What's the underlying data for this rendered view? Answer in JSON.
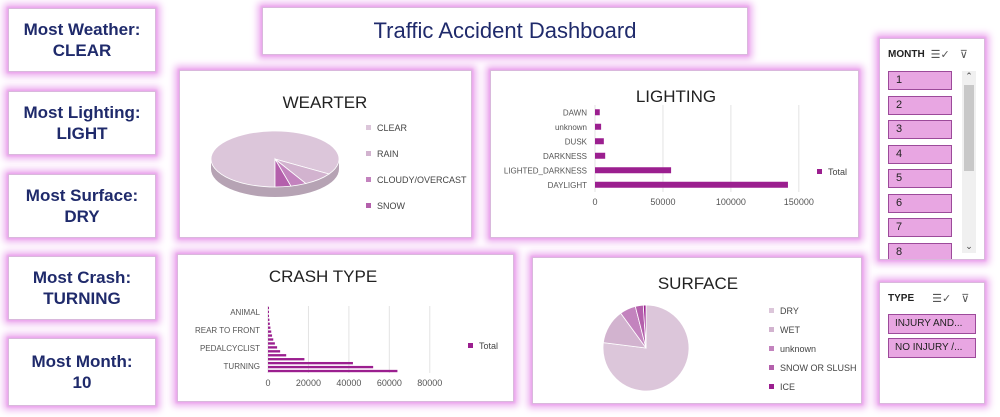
{
  "dashboard_title": "Traffic Accident Dashboard",
  "kpis": [
    {
      "label": "Most Weather:",
      "value": "CLEAR"
    },
    {
      "label": "Most Lighting:",
      "value": "LIGHT"
    },
    {
      "label": "Most Surface:",
      "value": "DRY"
    },
    {
      "label": "Most Crash:",
      "value": "TURNING"
    },
    {
      "label": "Most Month:",
      "value": "10"
    }
  ],
  "month_slicer": {
    "header": "MONTH",
    "multi_select_icon": "multi-select-icon",
    "clear_filter_icon": "clear-filter-icon",
    "items": [
      "1",
      "2",
      "3",
      "4",
      "5",
      "6",
      "7",
      "8"
    ]
  },
  "type_slicer": {
    "header": "TYPE",
    "multi_select_icon": "multi-select-icon",
    "clear_filter_icon": "clear-filter-icon",
    "items": [
      "INJURY AND...",
      "NO INJURY /..."
    ]
  },
  "colors": {
    "accent": "#9b1f8f",
    "pie_main": "#dcc6da",
    "glow": "#ecaaee",
    "title_text": "#1f2a6b"
  },
  "chart_data": [
    {
      "id": "weather",
      "type": "pie",
      "title": "WEARTER",
      "labels": [
        "CLEAR",
        "RAIN",
        "CLOUDY/OVERCAST",
        "SNOW"
      ],
      "values": [
        84,
        8,
        4,
        4
      ],
      "colors": [
        "#dcc6da",
        "#d2b3cf",
        "#c383be",
        "#b460ac"
      ],
      "legend": "right"
    },
    {
      "id": "lighting",
      "type": "bar",
      "orientation": "horizontal",
      "title": "LIGHTING",
      "categories": [
        "DAWN",
        "unknown",
        "DUSK",
        "DARKNESS",
        "LIGHTED_DARKNESS",
        "DAYLIGHT"
      ],
      "series": [
        {
          "name": "Total",
          "values": [
            3500,
            4500,
            6500,
            7500,
            56000,
            142000
          ]
        }
      ],
      "xticks": [
        "0",
        "50000",
        "100000",
        "150000"
      ],
      "xlim": [
        0,
        170000
      ],
      "grid": true,
      "legend": "right"
    },
    {
      "id": "crash_type",
      "type": "bar",
      "orientation": "horizontal",
      "title": "CRASH TYPE",
      "categories_shown": [
        "ANIMAL",
        "REAR TO FRONT",
        "PEDALCYCLIST",
        "TURNING"
      ],
      "values": [
        100,
        300,
        500,
        700,
        900,
        1200,
        1600,
        2000,
        2600,
        3400,
        4500,
        6000,
        9000,
        18000,
        42000,
        52000,
        64000
      ],
      "xticks": [
        "0",
        "20000",
        "40000",
        "60000",
        "80000"
      ],
      "xlim": [
        0,
        90000
      ],
      "series_name": "Total",
      "grid": true,
      "legend": "right"
    },
    {
      "id": "surface",
      "type": "pie",
      "title": "SURFACE",
      "labels": [
        "DRY",
        "WET",
        "unknown",
        "SNOW OR SLUSH",
        "ICE"
      ],
      "values": [
        77,
        13,
        6,
        3,
        1
      ],
      "colors": [
        "#dcc6da",
        "#d2b3cf",
        "#c383be",
        "#b460ac",
        "#9b1f8f"
      ],
      "legend": "right"
    }
  ]
}
